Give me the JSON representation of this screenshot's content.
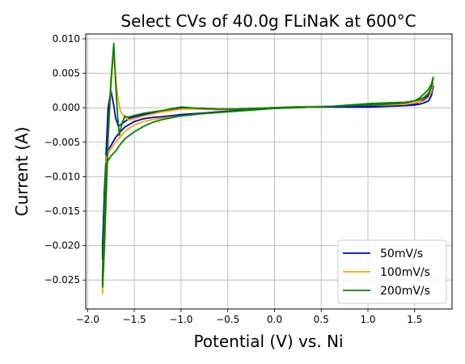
{
  "chart_data": {
    "type": "line",
    "title": "Select CVs of 40.0g FLiNaK at 600°C",
    "xlabel": "Potential (V) vs. Ni",
    "ylabel": "Current (A)",
    "xlim": [
      -2.02,
      1.9
    ],
    "ylim": [
      -0.0292,
      0.0107
    ],
    "xticks": [
      -2.0,
      -1.5,
      -1.0,
      -0.5,
      0.0,
      0.5,
      1.0,
      1.5
    ],
    "xtick_labels": [
      "−2.0",
      "−1.5",
      "−1.0",
      "−0.5",
      "0.0",
      "0.5",
      "1.0",
      "1.5"
    ],
    "yticks": [
      0.01,
      0.005,
      0.0,
      -0.005,
      -0.01,
      -0.015,
      -0.02,
      -0.025
    ],
    "ytick_labels": [
      "0.010",
      "0.005",
      "0.000",
      "−0.005",
      "−0.010",
      "−0.015",
      "−0.020",
      "−0.025"
    ],
    "grid": true,
    "legend_position": "lower-right",
    "series": [
      {
        "name": "50mV/s",
        "color": "#0000cd",
        "x": [
          1.7,
          1.68,
          1.65,
          1.6,
          1.55,
          1.5,
          1.4,
          1.2,
          1.0,
          0.8,
          0.6,
          0.4,
          0.2,
          0.0,
          -0.2,
          -0.4,
          -0.6,
          -0.8,
          -1.0,
          -1.2,
          -1.4,
          -1.55,
          -1.62,
          -1.67,
          -1.7,
          -1.72,
          -1.75,
          -1.78,
          -1.8,
          -1.82,
          -1.84,
          -1.84,
          -1.82,
          -1.8,
          -1.75,
          -1.7,
          -1.65,
          -1.6,
          -1.5,
          -1.4,
          -1.3,
          -1.2,
          -1.0,
          -0.8,
          -0.6,
          -0.4,
          -0.2,
          0.0,
          0.2,
          0.4,
          0.6,
          0.8,
          1.0,
          1.2,
          1.4,
          1.5,
          1.55,
          1.6,
          1.65,
          1.68,
          1.7
        ],
        "y": [
          0.0032,
          0.0018,
          0.001,
          0.0007,
          0.0005,
          0.0004,
          0.0003,
          0.0003,
          0.0003,
          0.0002,
          0.0002,
          0.0001,
          0.0001,
          0.0,
          -0.0001,
          -0.0002,
          -0.0002,
          -0.0001,
          -0.0001,
          -0.0005,
          -0.001,
          -0.0015,
          -0.0022,
          -0.0027,
          -0.0015,
          0.0003,
          0.0025,
          0.0,
          -0.006,
          -0.015,
          -0.022,
          -0.02,
          -0.012,
          -0.0066,
          -0.0055,
          -0.0043,
          -0.0035,
          -0.0028,
          -0.002,
          -0.0016,
          -0.0014,
          -0.0013,
          -0.001,
          -0.0008,
          -0.0006,
          -0.0004,
          -0.0002,
          -0.0001,
          0.0,
          0.0001,
          0.0001,
          0.0001,
          0.0001,
          0.0002,
          0.0003,
          0.0005,
          0.0008,
          0.0012,
          0.0018,
          0.0024,
          0.0033
        ]
      },
      {
        "name": "100mV/s",
        "color": "#ffa500",
        "x": [
          1.7,
          1.68,
          1.65,
          1.6,
          1.55,
          1.5,
          1.4,
          1.2,
          1.0,
          0.8,
          0.6,
          0.4,
          0.2,
          0.0,
          -0.2,
          -0.4,
          -0.6,
          -0.8,
          -1.0,
          -1.2,
          -1.4,
          -1.55,
          -1.6,
          -1.65,
          -1.68,
          -1.7,
          -1.72,
          -1.75,
          -1.78,
          -1.8,
          -1.82,
          -1.84,
          -1.84,
          -1.82,
          -1.8,
          -1.75,
          -1.7,
          -1.65,
          -1.6,
          -1.5,
          -1.4,
          -1.3,
          -1.2,
          -1.0,
          -0.8,
          -0.6,
          -0.4,
          -0.2,
          0.0,
          0.2,
          0.4,
          0.6,
          0.8,
          1.0,
          1.2,
          1.4,
          1.5,
          1.55,
          1.6,
          1.65,
          1.68,
          1.7
        ],
        "y": [
          0.0038,
          0.0024,
          0.0015,
          0.001,
          0.0008,
          0.0007,
          0.0006,
          0.0005,
          0.0004,
          0.0003,
          0.0002,
          0.0002,
          0.0001,
          0.0,
          -0.0001,
          -0.0002,
          -0.0003,
          -0.0002,
          -0.0002,
          -0.0006,
          -0.0012,
          -0.0018,
          -0.0015,
          -0.0005,
          0.0018,
          0.0045,
          0.008,
          0.003,
          -0.005,
          -0.013,
          -0.021,
          -0.027,
          -0.024,
          -0.015,
          -0.0071,
          -0.006,
          -0.005,
          -0.0042,
          -0.0034,
          -0.0025,
          -0.002,
          -0.0017,
          -0.0015,
          -0.0012,
          -0.0009,
          -0.0007,
          -0.0005,
          -0.0003,
          -0.0001,
          0.0,
          0.0001,
          0.0002,
          0.0003,
          0.0004,
          0.0004,
          0.0005,
          0.0007,
          0.001,
          0.0015,
          0.0022,
          0.003,
          0.0038
        ]
      },
      {
        "name": "200mV/s",
        "color": "#008000",
        "x": [
          1.7,
          1.68,
          1.65,
          1.6,
          1.55,
          1.5,
          1.4,
          1.2,
          1.0,
          0.8,
          0.6,
          0.4,
          0.2,
          0.0,
          -0.2,
          -0.4,
          -0.6,
          -0.8,
          -1.0,
          -1.2,
          -1.4,
          -1.52,
          -1.57,
          -1.6,
          -1.63,
          -1.66,
          -1.68,
          -1.7,
          -1.72,
          -1.75,
          -1.78,
          -1.8,
          -1.82,
          -1.84,
          -1.84,
          -1.82,
          -1.8,
          -1.75,
          -1.7,
          -1.65,
          -1.6,
          -1.5,
          -1.4,
          -1.3,
          -1.2,
          -1.0,
          -0.8,
          -0.6,
          -0.4,
          -0.2,
          0.0,
          0.2,
          0.4,
          0.6,
          0.8,
          1.0,
          1.2,
          1.4,
          1.5,
          1.55,
          1.6,
          1.65,
          1.68,
          1.7
        ],
        "y": [
          0.0045,
          0.003,
          0.0021,
          0.0015,
          0.0012,
          0.001,
          0.0008,
          0.0007,
          0.0006,
          0.0004,
          0.0002,
          0.0001,
          0.0001,
          0.0,
          -0.0001,
          -0.0002,
          -0.0002,
          -0.0001,
          0.0001,
          -0.0004,
          -0.0008,
          -0.0012,
          -0.0014,
          -0.0012,
          -0.0022,
          -0.004,
          -0.001,
          0.0035,
          0.0093,
          0.004,
          -0.004,
          -0.012,
          -0.02,
          -0.026,
          -0.024,
          -0.015,
          -0.0081,
          -0.007,
          -0.0063,
          -0.0053,
          -0.0045,
          -0.0035,
          -0.0027,
          -0.0021,
          -0.0017,
          -0.0012,
          -0.0009,
          -0.0007,
          -0.0005,
          -0.0003,
          -0.0001,
          0.0,
          0.0001,
          0.0002,
          0.0003,
          0.0004,
          0.0005,
          0.0007,
          0.001,
          0.0014,
          0.002,
          0.0027,
          0.0035,
          0.0045
        ]
      }
    ]
  }
}
